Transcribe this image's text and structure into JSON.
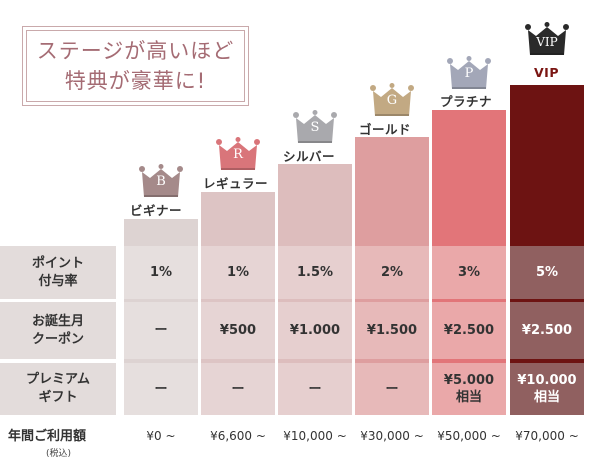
{
  "headline": {
    "line1": "ステージが高いほど",
    "line2": "特典が豪華に!"
  },
  "stages": [
    {
      "letter": "B",
      "name": "ビギナー",
      "crown_color": "#a58a8a",
      "name_color": "#333333",
      "bar_color": "#ddd3d2"
    },
    {
      "letter": "R",
      "name": "レギュラー",
      "crown_color": "#d9757a",
      "name_color": "#333333",
      "bar_color": "#ddc4c4"
    },
    {
      "letter": "S",
      "name": "シルバー",
      "crown_color": "#a9a9ad",
      "name_color": "#333333",
      "bar_color": "#ddbdbd"
    },
    {
      "letter": "G",
      "name": "ゴールド",
      "crown_color": "#c2a983",
      "name_color": "#333333",
      "bar_color": "#de9e9f"
    },
    {
      "letter": "P",
      "name": "プラチナ",
      "crown_color": "#a3a7b8",
      "name_color": "#333333",
      "bar_color": "#e27579"
    },
    {
      "letter": "VIP",
      "name": "VIP",
      "crown_color": "#2a2a2a",
      "name_color": "#7a1512",
      "bar_color": "#6d1312"
    }
  ],
  "rows": [
    {
      "label1": "ポイント",
      "label2": "付与率",
      "cells": [
        {
          "v1": "1%",
          "v2": ""
        },
        {
          "v1": "1%",
          "v2": ""
        },
        {
          "v1": "1.5%",
          "v2": ""
        },
        {
          "v1": "2%",
          "v2": ""
        },
        {
          "v1": "3%",
          "v2": ""
        },
        {
          "v1": "5%",
          "v2": ""
        }
      ]
    },
    {
      "label1": "お誕生月",
      "label2": "クーポン",
      "cells": [
        {
          "v1": "ー",
          "v2": ""
        },
        {
          "v1": "¥500",
          "v2": ""
        },
        {
          "v1": "¥1.000",
          "v2": ""
        },
        {
          "v1": "¥1.500",
          "v2": ""
        },
        {
          "v1": "¥2.500",
          "v2": ""
        },
        {
          "v1": "¥2.500",
          "v2": ""
        }
      ]
    },
    {
      "label1": "プレミアム",
      "label2": "ギフト",
      "cells": [
        {
          "v1": "ー",
          "v2": ""
        },
        {
          "v1": "ー",
          "v2": ""
        },
        {
          "v1": "ー",
          "v2": ""
        },
        {
          "v1": "ー",
          "v2": ""
        },
        {
          "v1": "¥5.000",
          "v2": "相当"
        },
        {
          "v1": "¥10.000",
          "v2": "相当"
        }
      ]
    }
  ],
  "annual_fee": {
    "label": "年間ご利用額",
    "tax_note": "(税込)",
    "values": [
      "¥0 ~",
      "¥6,600 ~",
      "¥10,000 ~",
      "¥30,000 ~",
      "¥50,000 ~",
      "¥70,000 ~"
    ]
  }
}
